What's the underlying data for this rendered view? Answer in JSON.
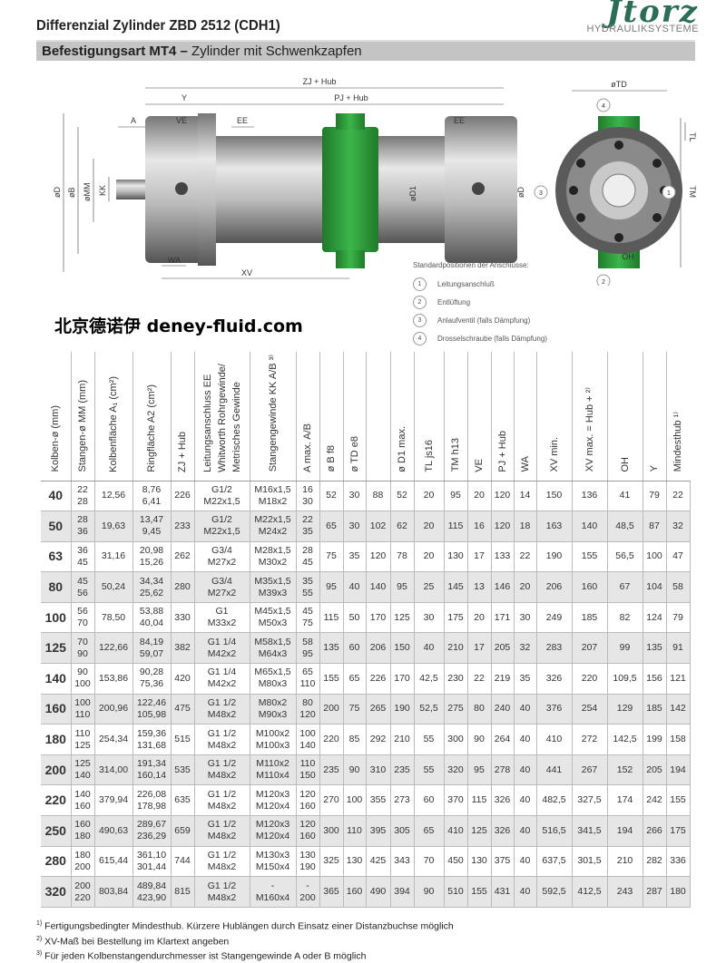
{
  "header": {
    "title": "Differenzial Zylinder ZBD 2512 (CDH1)",
    "logo_word": "Jtorz",
    "logo_sub": "HYDRAULIKSYSTEME"
  },
  "section": {
    "bold": "Befestigungsart MT4 –",
    "text": " Zylinder mit Schwenkzapfen"
  },
  "colors": {
    "trunnion_green": "#2f9a3a",
    "steel": "#b8b8b8",
    "row_alt": "#e6e6e6"
  },
  "drawing": {
    "labels": {
      "zj": "ZJ + Hub",
      "y": "Y",
      "pj": "PJ + Hub",
      "a": "A",
      "ve": "VE",
      "ee1": "EE",
      "ee2": "EE",
      "td": "øTD",
      "tl": "TL",
      "tm": "TM",
      "d1": "øD",
      "b": "øB",
      "mm": "øMM",
      "kk": "KK",
      "dd1": "øD1",
      "d2": "øD",
      "wa": "WA",
      "xv": "XV",
      "oh": "OH",
      "n4": "4",
      "n3": "3",
      "n1": "1",
      "n2": "2"
    }
  },
  "legend": {
    "title": "Standardpositionen der Anschlüsse:",
    "items": [
      {
        "n": "1",
        "t": "Leitungsanschluß"
      },
      {
        "n": "2",
        "t": "Entlüftung"
      },
      {
        "n": "3",
        "t": "Anlaufventil (falls Dämpfung)"
      },
      {
        "n": "4",
        "t": "Drosselschraube (falls Dämpfung)"
      }
    ]
  },
  "table": {
    "headers": [
      "Kolben-ø (mm)",
      "Stangen-ø MM (mm)",
      "Kolbenfläche A₁ (cm²)",
      "Ringfläche A2 (cm²)",
      "ZJ + Hub",
      "Leitungsanschluss EE\nWhitworth Rohrgewinde/\nMetrisches Gewinde",
      "Stangengewinde KK A/B ³⁾",
      "A max. A/B",
      "ø B f8",
      "ø TD e8",
      "",
      "ø D1 max.",
      "TL js16",
      "TM h13",
      "VE",
      "PJ + Hub",
      "WA",
      "XV min.",
      "XV max. = Hub + ²⁾",
      "OH",
      "Y",
      "Mindesthub ¹⁾"
    ],
    "rows": [
      [
        "40",
        "22\n28",
        "12,56",
        "8,76\n6,41",
        "226",
        "G1/2\nM22x1,5",
        "M16x1,5\nM18x2",
        "16\n30",
        "52",
        "30",
        "88",
        "52",
        "20",
        "95",
        "20",
        "120",
        "14",
        "150",
        "136",
        "41",
        "79",
        "22"
      ],
      [
        "50",
        "28\n36",
        "19,63",
        "13,47\n9,45",
        "233",
        "G1/2\nM22x1,5",
        "M22x1,5\nM24x2",
        "22\n35",
        "65",
        "30",
        "102",
        "62",
        "20",
        "115",
        "16",
        "120",
        "18",
        "163",
        "140",
        "48,5",
        "87",
        "32"
      ],
      [
        "63",
        "36\n45",
        "31,16",
        "20,98\n15,26",
        "262",
        "G3/4\nM27x2",
        "M28x1,5\nM30x2",
        "28\n45",
        "75",
        "35",
        "120",
        "78",
        "20",
        "130",
        "17",
        "133",
        "22",
        "190",
        "155",
        "56,5",
        "100",
        "47"
      ],
      [
        "80",
        "45\n56",
        "50,24",
        "34,34\n25,62",
        "280",
        "G3/4\nM27x2",
        "M35x1,5\nM39x3",
        "35\n55",
        "95",
        "40",
        "140",
        "95",
        "25",
        "145",
        "13",
        "146",
        "20",
        "206",
        "160",
        "67",
        "104",
        "58"
      ],
      [
        "100",
        "56\n70",
        "78,50",
        "53,88\n40,04",
        "330",
        "G1\nM33x2",
        "M45x1,5\nM50x3",
        "45\n75",
        "115",
        "50",
        "170",
        "125",
        "30",
        "175",
        "20",
        "171",
        "30",
        "249",
        "185",
        "82",
        "124",
        "79"
      ],
      [
        "125",
        "70\n90",
        "122,66",
        "84,19\n59,07",
        "382",
        "G1 1/4\nM42x2",
        "M58x1,5\nM64x3",
        "58\n95",
        "135",
        "60",
        "206",
        "150",
        "40",
        "210",
        "17",
        "205",
        "32",
        "283",
        "207",
        "99",
        "135",
        "91"
      ],
      [
        "140",
        "90\n100",
        "153,86",
        "90,28\n75,36",
        "420",
        "G1 1/4\nM42x2",
        "M65x1,5\nM80x3",
        "65\n110",
        "155",
        "65",
        "226",
        "170",
        "42,5",
        "230",
        "22",
        "219",
        "35",
        "326",
        "220",
        "109,5",
        "156",
        "121"
      ],
      [
        "160",
        "100\n110",
        "200,96",
        "122,46\n105,98",
        "475",
        "G1 1/2\nM48x2",
        "M80x2\nM90x3",
        "80\n120",
        "200",
        "75",
        "265",
        "190",
        "52,5",
        "275",
        "80",
        "240",
        "40",
        "376",
        "254",
        "129",
        "185",
        "142"
      ],
      [
        "180",
        "110\n125",
        "254,34",
        "159,36\n131,68",
        "515",
        "G1 1/2\nM48x2",
        "M100x2\nM100x3",
        "100\n140",
        "220",
        "85",
        "292",
        "210",
        "55",
        "300",
        "90",
        "264",
        "40",
        "410",
        "272",
        "142,5",
        "199",
        "158"
      ],
      [
        "200",
        "125\n140",
        "314,00",
        "191,34\n160,14",
        "535",
        "G1 1/2\nM48x2",
        "M110x2\nM110x4",
        "110\n150",
        "235",
        "90",
        "310",
        "235",
        "55",
        "320",
        "95",
        "278",
        "40",
        "441",
        "267",
        "152",
        "205",
        "194"
      ],
      [
        "220",
        "140\n160",
        "379,94",
        "226,08\n178,98",
        "635",
        "G1 1/2\nM48x2",
        "M120x3\nM120x4",
        "120\n160",
        "270",
        "100",
        "355",
        "273",
        "60",
        "370",
        "115",
        "326",
        "40",
        "482,5",
        "327,5",
        "174",
        "242",
        "155"
      ],
      [
        "250",
        "160\n180",
        "490,63",
        "289,67\n236,29",
        "659",
        "G1 1/2\nM48x2",
        "M120x3\nM120x4",
        "120\n160",
        "300",
        "110",
        "395",
        "305",
        "65",
        "410",
        "125",
        "326",
        "40",
        "516,5",
        "341,5",
        "194",
        "266",
        "175"
      ],
      [
        "280",
        "180\n200",
        "615,44",
        "361,10\n301,44",
        "744",
        "G1 1/2\nM48x2",
        "M130x3\nM150x4",
        "130\n190",
        "325",
        "130",
        "425",
        "343",
        "70",
        "450",
        "130",
        "375",
        "40",
        "637,5",
        "301,5",
        "210",
        "282",
        "336"
      ],
      [
        "320",
        "200\n220",
        "803,84",
        "489,84\n423,90",
        "815",
        "G1 1/2\nM48x2",
        "-\nM160x4",
        "-\n200",
        "365",
        "160",
        "490",
        "394",
        "90",
        "510",
        "155",
        "431",
        "40",
        "592,5",
        "412,5",
        "243",
        "287",
        "180"
      ]
    ]
  },
  "watermark": "北京德诺伊 deney-fluid.com",
  "footnotes": [
    {
      "n": "1)",
      "t": " Fertigungsbedingter Mindesthub. Kürzere Hublängen durch Einsatz einer Distanzbuchse möglich"
    },
    {
      "n": "2)",
      "t": " XV-Maß bei Bestellung im Klartext angeben"
    },
    {
      "n": "3)",
      "t": " Für jeden Kolbenstangendurchmesser ist Stangengewinde A oder B möglich"
    }
  ]
}
